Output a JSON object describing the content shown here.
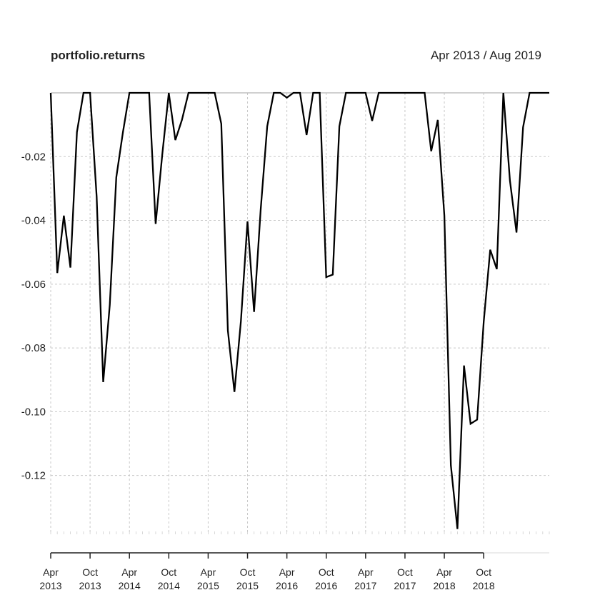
{
  "chart_data": {
    "type": "line",
    "title": "portfolio.returns",
    "date_range": "Apr 2013 / Aug 2019",
    "ylim": [
      -0.138,
      0.0
    ],
    "y_ticks": [
      -0.02,
      -0.04,
      -0.06,
      -0.08,
      -0.1,
      -0.12
    ],
    "y_tick_labels": [
      "-0.02",
      "-0.04",
      "-0.06",
      "-0.08",
      "-0.10",
      "-0.12"
    ],
    "x_range": [
      "2013-04",
      "2019-08"
    ],
    "x_ticks": [
      "2013-04",
      "2013-10",
      "2014-04",
      "2014-10",
      "2015-04",
      "2015-10",
      "2016-04",
      "2016-10",
      "2017-04",
      "2017-10",
      "2018-04",
      "2018-10"
    ],
    "x_tick_labels": [
      [
        "Apr",
        "2013"
      ],
      [
        "Oct",
        "2013"
      ],
      [
        "Apr",
        "2014"
      ],
      [
        "Oct",
        "2014"
      ],
      [
        "Apr",
        "2015"
      ],
      [
        "Oct",
        "2015"
      ],
      [
        "Apr",
        "2016"
      ],
      [
        "Oct",
        "2016"
      ],
      [
        "Apr",
        "2017"
      ],
      [
        "Oct",
        "2017"
      ],
      [
        "Apr",
        "2018"
      ],
      [
        "Oct",
        "2018"
      ]
    ],
    "grid": true,
    "series": [
      {
        "x": [
          "2013-04",
          "2013-05",
          "2013-06",
          "2013-07",
          "2013-08",
          "2013-09",
          "2013-10",
          "2013-11",
          "2013-12",
          "2014-01",
          "2014-02",
          "2014-03",
          "2014-04",
          "2014-05",
          "2014-06",
          "2014-07",
          "2014-08",
          "2014-09",
          "2014-10",
          "2014-11",
          "2014-12",
          "2015-01",
          "2015-02",
          "2015-03",
          "2015-04",
          "2015-05",
          "2015-06",
          "2015-07",
          "2015-08",
          "2015-09",
          "2015-10",
          "2015-11",
          "2015-12",
          "2016-01",
          "2016-02",
          "2016-03",
          "2016-04",
          "2016-05",
          "2016-06",
          "2016-07",
          "2016-08",
          "2016-09",
          "2016-10",
          "2016-11",
          "2016-12",
          "2017-01",
          "2017-02",
          "2017-03",
          "2017-04",
          "2017-05",
          "2017-06",
          "2017-07",
          "2017-08",
          "2017-09",
          "2017-10",
          "2017-11",
          "2017-12",
          "2018-01",
          "2018-02",
          "2018-03",
          "2018-04",
          "2018-05",
          "2018-06",
          "2018-07",
          "2018-08",
          "2018-09",
          "2018-10",
          "2018-11",
          "2018-12",
          "2019-01",
          "2019-02",
          "2019-03",
          "2019-04",
          "2019-05",
          "2019-06",
          "2019-07",
          "2019-08"
        ],
        "values": [
          0.0,
          -0.0565,
          -0.0385,
          -0.0548,
          -0.0123,
          0.0,
          0.0,
          -0.0325,
          -0.0907,
          -0.0665,
          -0.0265,
          -0.0125,
          0.0,
          0.0,
          0.0,
          0.0,
          -0.0411,
          -0.0195,
          0.0,
          -0.0148,
          -0.0085,
          0.0,
          0.0,
          0.0,
          0.0,
          0.0,
          -0.0097,
          -0.0745,
          -0.0938,
          -0.0715,
          -0.0403,
          -0.0687,
          -0.0368,
          -0.0105,
          0.0,
          0.0,
          -0.0015,
          0.0,
          0.0,
          -0.0132,
          0.0,
          0.0,
          -0.0578,
          -0.057,
          -0.0105,
          0.0,
          0.0,
          0.0,
          0.0,
          -0.0088,
          0.0,
          0.0,
          0.0,
          0.0,
          0.0,
          0.0,
          0.0,
          0.0,
          -0.0183,
          -0.0085,
          -0.0385,
          -0.1168,
          -0.1368,
          -0.0855,
          -0.1038,
          -0.1025,
          -0.0718,
          -0.0492,
          -0.0553,
          0.0,
          -0.0275,
          -0.0438,
          -0.0108,
          0.0,
          0.0,
          0.0,
          0.0
        ]
      }
    ]
  }
}
